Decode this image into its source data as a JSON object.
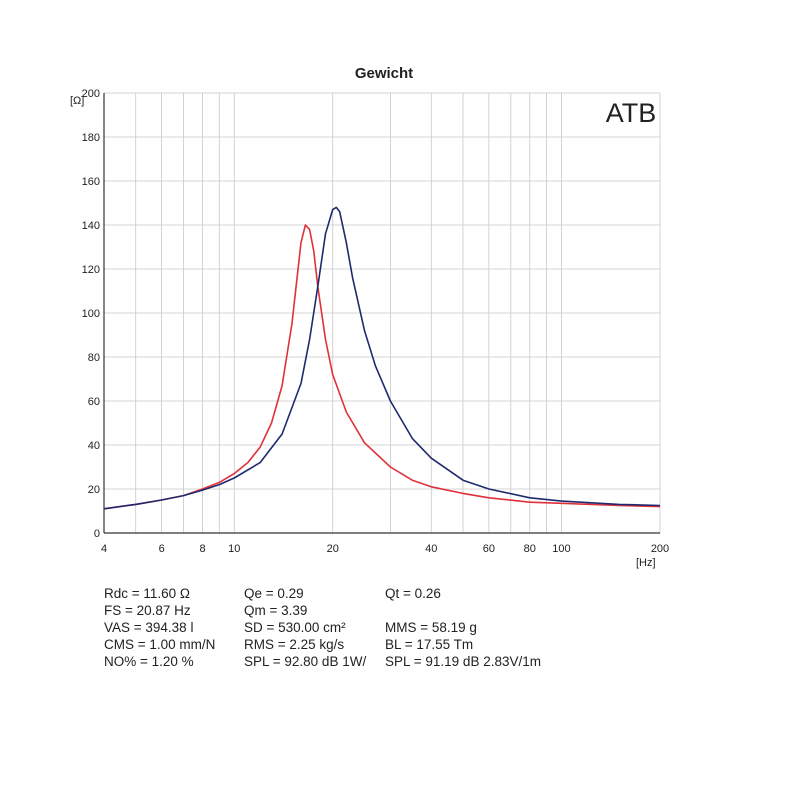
{
  "chart_data": {
    "type": "line",
    "title": "Gewicht",
    "brand": "ATB",
    "xlabel": "[Hz]",
    "ylabel": "[Ω]",
    "xscale": "log",
    "xlim": [
      4,
      200
    ],
    "ylim": [
      0,
      200
    ],
    "grid": true,
    "xticks": [
      4,
      6,
      8,
      10,
      20,
      40,
      60,
      80,
      100,
      200
    ],
    "yticks": [
      0,
      20,
      40,
      60,
      80,
      100,
      120,
      140,
      160,
      180,
      200
    ],
    "series": [
      {
        "color": "#e0303a",
        "x": [
          4,
          5,
          6,
          7,
          8,
          9,
          10,
          11,
          12,
          13,
          14,
          15,
          16,
          16.5,
          17,
          17.5,
          18,
          19,
          20,
          22,
          25,
          30,
          35,
          40,
          50,
          60,
          80,
          100,
          150,
          200
        ],
        "y": [
          11,
          13,
          15,
          17,
          20,
          23,
          27,
          32,
          39,
          50,
          67,
          95,
          132,
          140,
          138,
          128,
          112,
          88,
          72,
          55,
          41,
          30,
          24,
          21,
          18,
          16,
          14,
          13.5,
          12.5,
          12
        ]
      },
      {
        "color": "#1f2a6e",
        "x": [
          4,
          5,
          6,
          7,
          8,
          9,
          10,
          12,
          14,
          16,
          17,
          18,
          19,
          20,
          20.5,
          21,
          22,
          23,
          25,
          27,
          30,
          35,
          40,
          50,
          60,
          80,
          100,
          150,
          200
        ],
        "y": [
          11,
          13,
          15,
          17,
          19.5,
          22,
          25,
          32,
          45,
          68,
          88,
          112,
          136,
          147,
          148,
          146,
          132,
          116,
          92,
          76,
          60,
          43,
          34,
          24,
          20,
          16,
          14.5,
          13,
          12.5
        ]
      }
    ]
  },
  "params": [
    [
      "Rdc = 11.60 Ω",
      "Qe = 0.29",
      "Qt = 0.26"
    ],
    [
      "FS = 20.87 Hz",
      "Qm = 3.39",
      ""
    ],
    [
      "VAS = 394.38 l",
      "SD = 530.00 cm²",
      "MMS = 58.19 g"
    ],
    [
      "CMS = 1.00 mm/N",
      "RMS = 2.25 kg/s",
      "BL = 17.55 Tm"
    ],
    [
      "NO% = 1.20 %",
      "SPL = 92.80 dB 1W/",
      "SPL = 91.19 dB 2.83V/1m"
    ]
  ]
}
